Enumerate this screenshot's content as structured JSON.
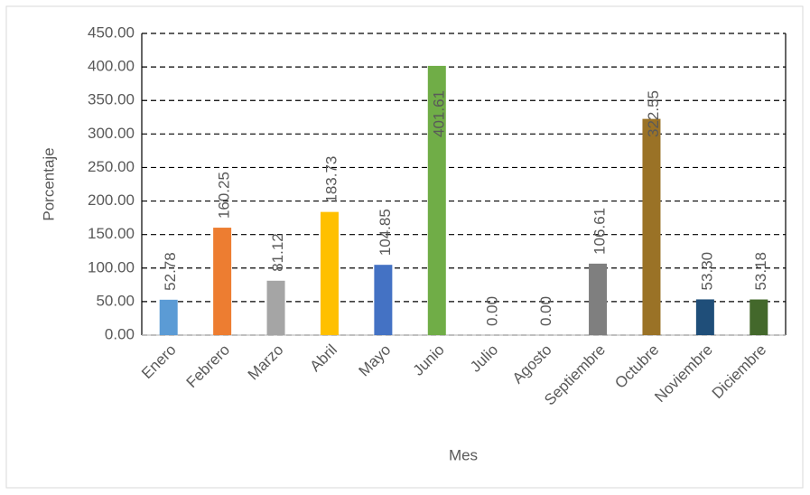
{
  "chart_data": {
    "type": "bar",
    "x_label": "Mes",
    "y_label": "Porcentaje",
    "categories": [
      "Enero",
      "Febrero",
      "Marzo",
      "Abril",
      "Mayo",
      "Junio",
      "Julio",
      "Agosto",
      "Septiembre",
      "Octubre",
      "Noviembre",
      "Diciembre"
    ],
    "values": [
      52.78,
      160.25,
      81.12,
      183.73,
      104.85,
      401.61,
      0,
      0,
      106.61,
      322.55,
      53.3,
      53.18
    ],
    "value_labels": [
      "52.78",
      "160.25",
      "81.12",
      "183.73",
      "104.85",
      "401.61",
      "0.00",
      "0.00",
      "106.61",
      "322.55",
      "53.30",
      "53.18"
    ],
    "colors": [
      "#5b9bd5",
      "#ed7d31",
      "#a5a5a5",
      "#ffc000",
      "#4472c4",
      "#70ad47",
      "#264478",
      "#9e480e",
      "#7f7f7f",
      "#9a7226",
      "#1f4e79",
      "#43682b"
    ],
    "ylim": [
      0,
      450
    ],
    "yticks": [
      {
        "value": 0,
        "label": "0.00"
      },
      {
        "value": 50,
        "label": "50.00"
      },
      {
        "value": 100,
        "label": "100.00"
      },
      {
        "value": 150,
        "label": "150.00"
      },
      {
        "value": 200,
        "label": "200.00"
      },
      {
        "value": 250,
        "label": "250.00"
      },
      {
        "value": 300,
        "label": "300.00"
      },
      {
        "value": 350,
        "label": "350.00"
      },
      {
        "value": 400,
        "label": "400.00"
      },
      {
        "value": 450,
        "label": "450.00"
      }
    ],
    "grid": true
  }
}
